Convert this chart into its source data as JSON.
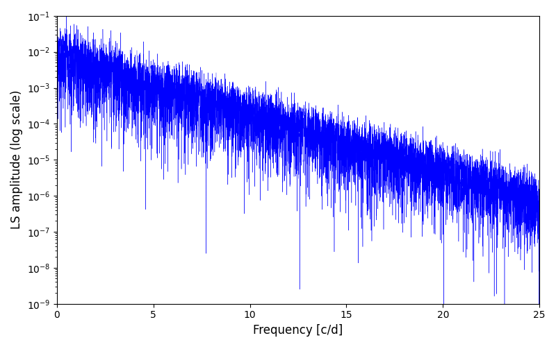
{
  "xlabel": "Frequency [c/d]",
  "ylabel": "LS amplitude (log scale)",
  "xlim": [
    0,
    25
  ],
  "ylim": [
    1e-09,
    0.1
  ],
  "line_color": "#0000ff",
  "linewidth": 0.3,
  "background_color": "#ffffff",
  "num_points": 8000,
  "seed": 1234,
  "freq_max": 25.0,
  "figsize": [
    8.0,
    5.0
  ],
  "dpi": 100
}
